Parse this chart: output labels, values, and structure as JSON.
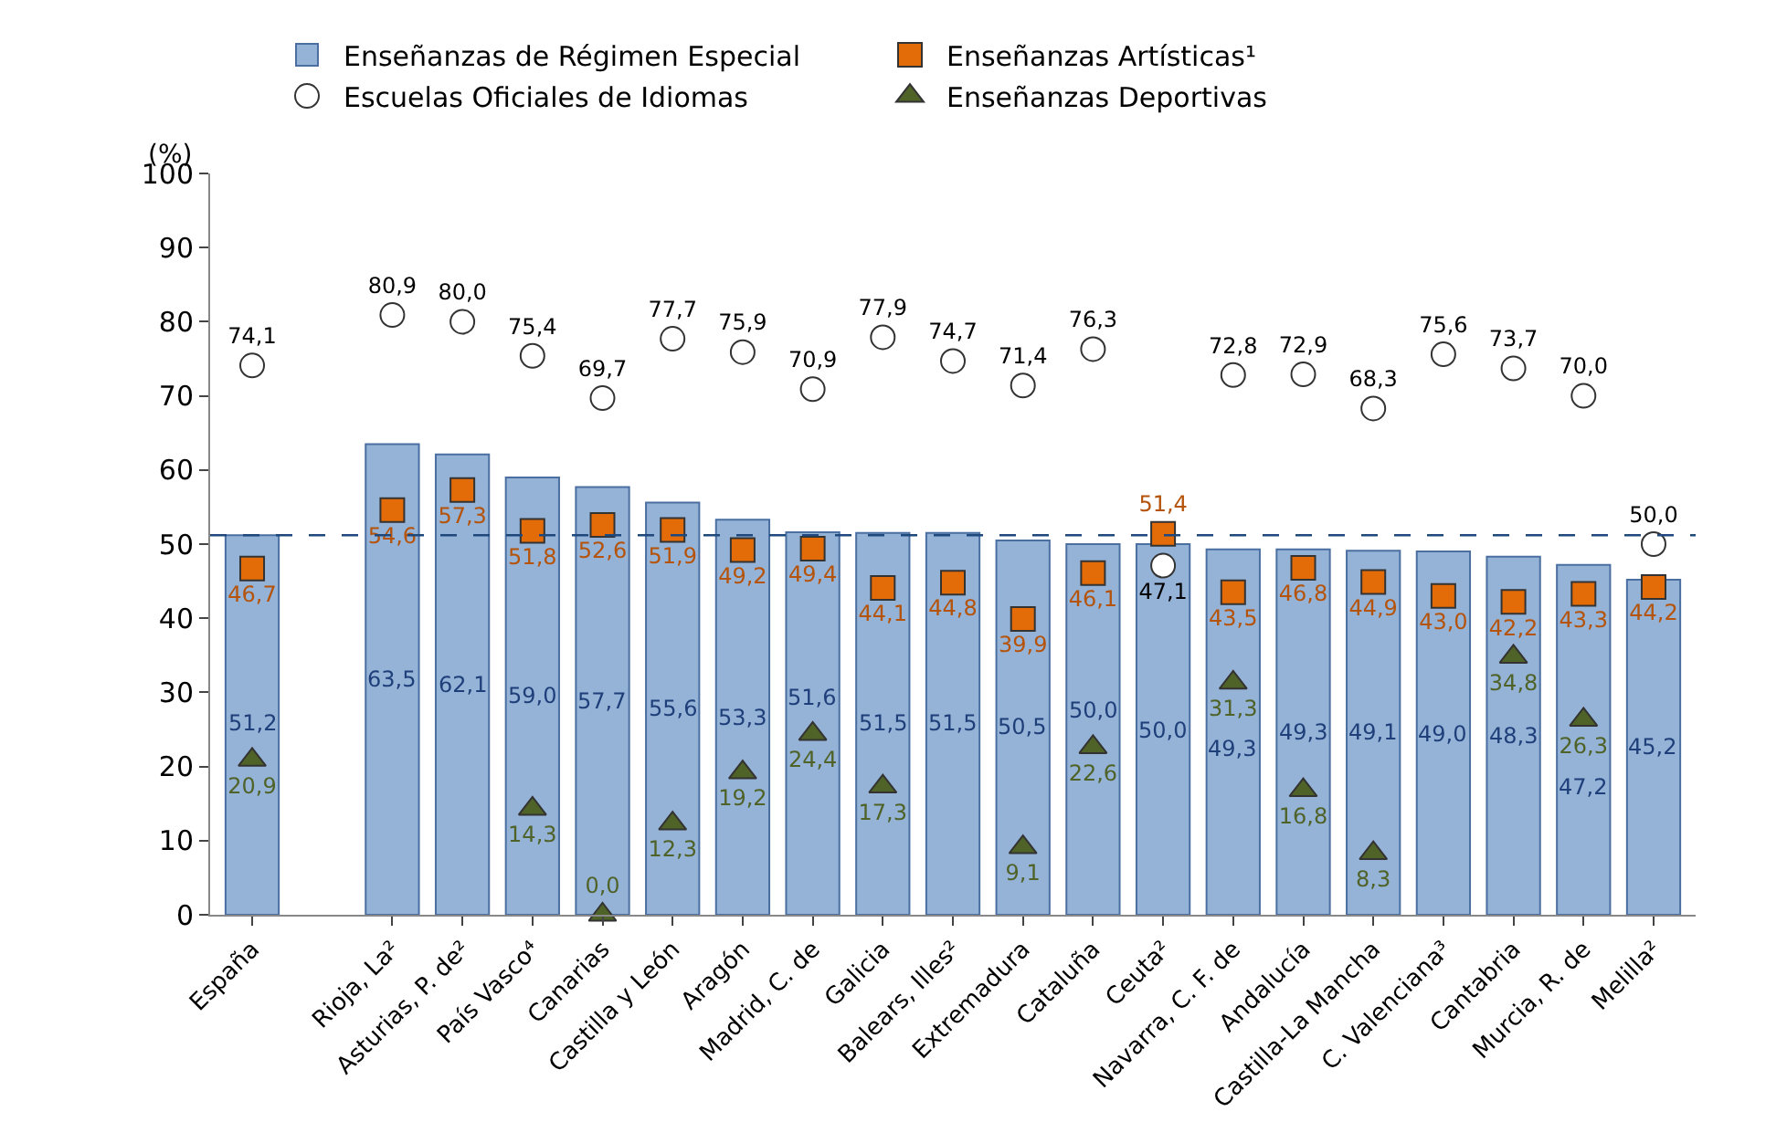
{
  "chart_data": {
    "type": "bar",
    "ylabel": "(%)",
    "categories": [
      "España",
      null,
      "Rioja, La²",
      "Asturias, P. de²",
      "País Vasco⁴",
      "Canarias",
      "Castilla y León",
      "Aragón",
      "Madrid, C. de",
      "Galicia",
      "Balears, Illes²",
      "Extremadura",
      "Cataluña",
      "Ceuta²",
      "Navarra, C. F. de",
      "Andalucía",
      "Castilla-La Mancha",
      "C. Valenciana³",
      "Cantabria",
      "Murcia, R. de",
      "Melilla²"
    ],
    "series": [
      {
        "name": "Enseñanzas de Régimen Especial",
        "color": "#95b3d7",
        "values": [
          51.2,
          null,
          63.5,
          62.1,
          59.0,
          57.7,
          55.6,
          53.3,
          51.6,
          51.5,
          51.5,
          50.5,
          50.0,
          50.0,
          49.3,
          49.3,
          49.1,
          49.0,
          48.3,
          47.2,
          45.2
        ],
        "value_labels": [
          "51,2",
          null,
          "63,5",
          "62,1",
          "59,0",
          "57,7",
          "55,6",
          "53,3",
          "51,6",
          "51,5",
          "51,5",
          "50,5",
          "50,0",
          "50,0",
          "49,3",
          "49,3",
          "49,1",
          "49,0",
          "48,3",
          "47,2",
          "45,2"
        ]
      },
      {
        "name": "Enseñanzas Artísticas¹",
        "type": "scatter",
        "marker": "square",
        "color": "#e36c09",
        "values": [
          46.7,
          null,
          54.6,
          57.3,
          51.8,
          52.6,
          51.9,
          49.2,
          49.4,
          44.1,
          44.8,
          39.9,
          46.1,
          51.4,
          43.5,
          46.8,
          44.9,
          43.0,
          42.2,
          43.3,
          44.2
        ],
        "value_labels": [
          "46,7",
          null,
          "54,6",
          "57,3",
          "51,8",
          "52,6",
          "51,9",
          "49,2",
          "49,4",
          "44,1",
          "44,8",
          "39,9",
          "46,1",
          "51,4",
          "43,5",
          "46,8",
          "44,9",
          "43,0",
          "42,2",
          "43,3",
          "44,2"
        ]
      },
      {
        "name": "Escuelas Oficiales de Idiomas",
        "type": "scatter",
        "marker": "circle",
        "color": "#ffffff",
        "values": [
          74.1,
          null,
          80.9,
          80.0,
          75.4,
          69.7,
          77.7,
          75.9,
          70.9,
          77.9,
          74.7,
          71.4,
          76.3,
          47.1,
          72.8,
          72.9,
          68.3,
          75.6,
          73.7,
          70.0,
          50.0
        ],
        "value_labels": [
          "74,1",
          null,
          "80,9",
          "80,0",
          "75,4",
          "69,7",
          "77,7",
          "75,9",
          "70,9",
          "77,9",
          "74,7",
          "71,4",
          "76,3",
          "47,1",
          "72,8",
          "72,9",
          "68,3",
          "75,6",
          "73,7",
          "70,0",
          "50,0"
        ]
      },
      {
        "name": "Enseñanzas Deportivas",
        "type": "scatter",
        "marker": "triangle",
        "color": "#4f6228",
        "values": [
          20.9,
          null,
          null,
          null,
          14.3,
          0.0,
          12.3,
          19.2,
          24.4,
          17.3,
          null,
          9.1,
          22.6,
          null,
          31.3,
          16.8,
          8.3,
          null,
          34.8,
          26.3,
          null
        ],
        "value_labels": [
          "20,9",
          null,
          null,
          null,
          "14,3",
          "0,0",
          "12,3",
          "19,2",
          "24,4",
          "17,3",
          null,
          "9,1",
          "22,6",
          null,
          "31,3",
          "16,8",
          "8,3",
          null,
          "34,8",
          "26,3",
          null
        ]
      }
    ],
    "ylim": [
      0,
      100
    ],
    "yticks": [
      0,
      10,
      20,
      30,
      40,
      50,
      60,
      70,
      80,
      90,
      100
    ],
    "grid": false,
    "legend": "top",
    "ref_lines": [
      {
        "axis": "y",
        "value": 51.2,
        "color": "#1f497d",
        "line_style": "dashed"
      }
    ]
  }
}
